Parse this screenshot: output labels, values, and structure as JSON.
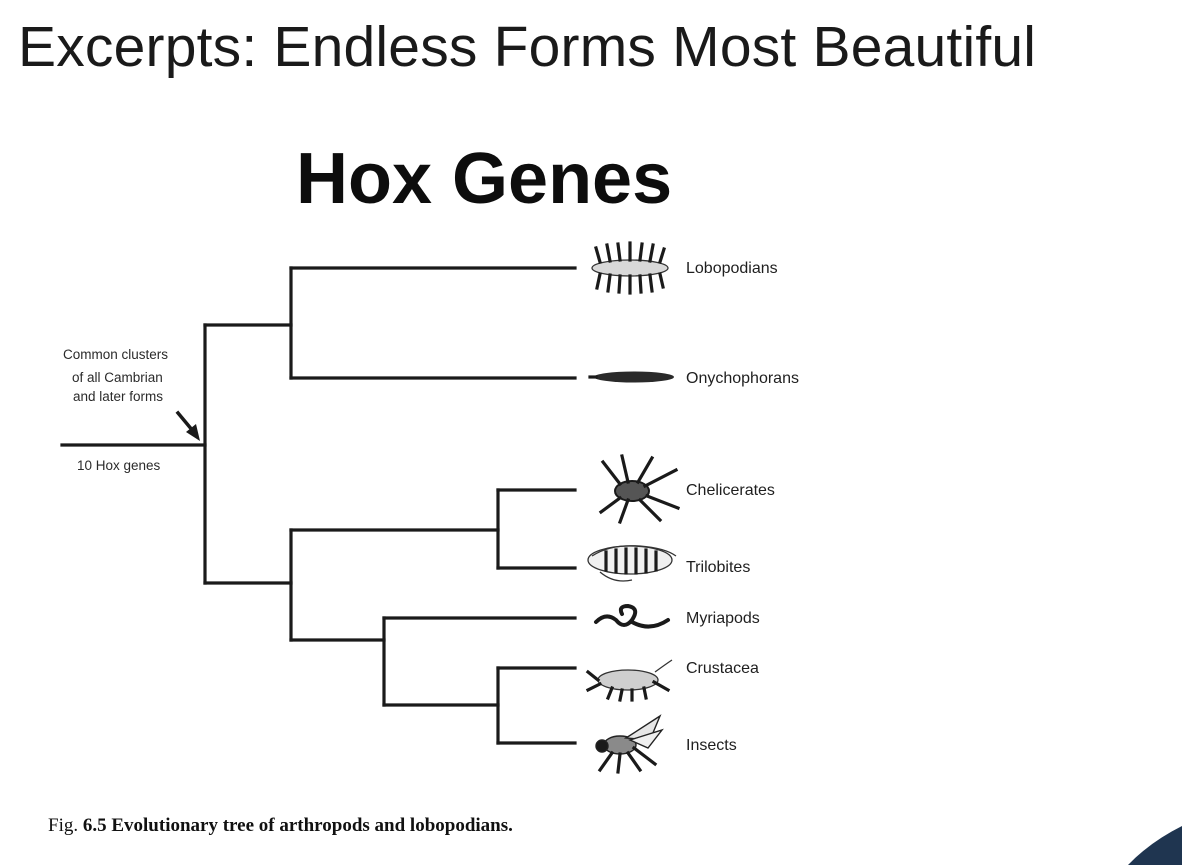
{
  "slide": {
    "title": "Excerpts: Endless Forms Most Beautiful",
    "heading": "Hox Genes"
  },
  "tree": {
    "taxa": [
      {
        "label": "Lobopodians",
        "icon": "lobopodian-icon"
      },
      {
        "label": "Onychophorans",
        "icon": "onychophoran-icon"
      },
      {
        "label": "Chelicerates",
        "icon": "chelicerate-icon"
      },
      {
        "label": "Trilobites",
        "icon": "trilobite-icon"
      },
      {
        "label": "Myriapods",
        "icon": "myriapod-icon"
      },
      {
        "label": "Crustacea",
        "icon": "crustacean-icon"
      },
      {
        "label": "Insects",
        "icon": "insect-icon"
      }
    ],
    "root_note_lines": [
      "Common clusters",
      "of all Cambrian",
      "and later forms"
    ],
    "root_label": "10 Hox genes"
  },
  "caption": {
    "prefix": "Fig.",
    "text": "6.5 Evolutionary tree of arthropods and lobopodians."
  },
  "colors": {
    "line": "#1a1a1a",
    "corner_accent": "#1f3550"
  }
}
